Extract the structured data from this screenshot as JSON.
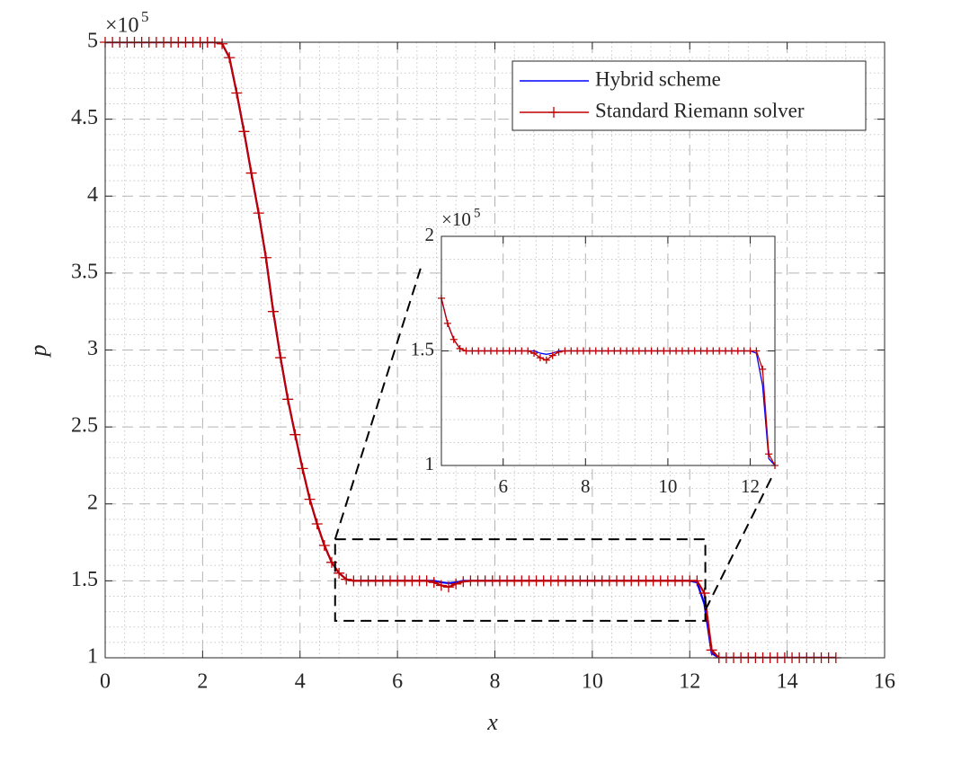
{
  "chart_data": {
    "type": "line",
    "xlabel": "x",
    "ylabel": "p",
    "y_multiplier": {
      "base": "×10",
      "exponent": "5"
    },
    "xlim": [
      0,
      16
    ],
    "ylim": [
      1,
      5
    ],
    "xticks": [
      0,
      2,
      4,
      6,
      8,
      10,
      12,
      14,
      16
    ],
    "yticks": [
      1,
      1.5,
      2,
      2.5,
      3,
      3.5,
      4,
      4.5,
      5
    ],
    "grid": true,
    "minor_grid": true,
    "legend": "upper right",
    "x": [
      0,
      0.15,
      0.3,
      0.45,
      0.6,
      0.75,
      0.9,
      1.05,
      1.2,
      1.35,
      1.5,
      1.65,
      1.8,
      1.95,
      2.1,
      2.25,
      2.4,
      2.55,
      2.7,
      2.85,
      3,
      3.15,
      3.3,
      3.45,
      3.6,
      3.75,
      3.9,
      4.05,
      4.2,
      4.35,
      4.5,
      4.65,
      4.8,
      4.95,
      5.1,
      5.25,
      5.4,
      5.55,
      5.7,
      5.85,
      6,
      6.15,
      6.3,
      6.45,
      6.6,
      6.75,
      6.9,
      7.05,
      7.2,
      7.35,
      7.5,
      7.65,
      7.8,
      7.95,
      8.1,
      8.25,
      8.4,
      8.55,
      8.7,
      8.85,
      9,
      9.15,
      9.3,
      9.45,
      9.6,
      9.75,
      9.9,
      10.05,
      10.2,
      10.35,
      10.5,
      10.65,
      10.8,
      10.95,
      11.1,
      11.25,
      11.4,
      11.55,
      11.7,
      11.85,
      12,
      12.15,
      12.3,
      12.45,
      12.6,
      12.75,
      12.9,
      13.05,
      13.2,
      13.35,
      13.5,
      13.65,
      13.8,
      13.95,
      14.1,
      14.25,
      14.4,
      14.55,
      14.7,
      14.85,
      15
    ],
    "series": [
      {
        "name": "Hybrid scheme",
        "color": "#0000ff",
        "marker": "none",
        "values": [
          5,
          5,
          5,
          5,
          5,
          5,
          5,
          5,
          5,
          5,
          5,
          5,
          5,
          5,
          5,
          5,
          4.99,
          4.9,
          4.67,
          4.42,
          4.15,
          3.89,
          3.6,
          3.25,
          2.95,
          2.68,
          2.45,
          2.23,
          2.03,
          1.87,
          1.73,
          1.62,
          1.55,
          1.51,
          1.5,
          1.5,
          1.5,
          1.5,
          1.5,
          1.5,
          1.5,
          1.5,
          1.5,
          1.5,
          1.5,
          1.5,
          1.49,
          1.485,
          1.49,
          1.5,
          1.5,
          1.5,
          1.5,
          1.5,
          1.5,
          1.5,
          1.5,
          1.5,
          1.5,
          1.5,
          1.5,
          1.5,
          1.5,
          1.5,
          1.5,
          1.5,
          1.5,
          1.5,
          1.5,
          1.5,
          1.5,
          1.5,
          1.5,
          1.5,
          1.5,
          1.5,
          1.5,
          1.5,
          1.5,
          1.5,
          1.5,
          1.49,
          1.35,
          1.03,
          1,
          1,
          1,
          1,
          1,
          1,
          1,
          1,
          1,
          1,
          1,
          1,
          1,
          1,
          1,
          1,
          1
        ]
      },
      {
        "name": "Standard Riemann solver",
        "color": "#c00000",
        "marker": "+",
        "values": [
          5,
          5,
          5,
          5,
          5,
          5,
          5,
          5,
          5,
          5,
          5,
          5,
          5,
          5,
          5,
          5,
          4.99,
          4.9,
          4.67,
          4.42,
          4.15,
          3.89,
          3.6,
          3.25,
          2.95,
          2.68,
          2.45,
          2.23,
          2.03,
          1.87,
          1.73,
          1.62,
          1.55,
          1.51,
          1.5,
          1.5,
          1.5,
          1.5,
          1.5,
          1.5,
          1.5,
          1.5,
          1.5,
          1.5,
          1.5,
          1.49,
          1.47,
          1.46,
          1.48,
          1.495,
          1.5,
          1.5,
          1.5,
          1.5,
          1.5,
          1.5,
          1.5,
          1.5,
          1.5,
          1.5,
          1.5,
          1.5,
          1.5,
          1.5,
          1.5,
          1.5,
          1.5,
          1.5,
          1.5,
          1.5,
          1.5,
          1.5,
          1.5,
          1.5,
          1.5,
          1.5,
          1.5,
          1.5,
          1.5,
          1.5,
          1.5,
          1.5,
          1.42,
          1.05,
          1,
          1,
          1,
          1,
          1,
          1,
          1,
          1,
          1,
          1,
          1,
          1,
          1,
          1,
          1,
          1,
          1
        ]
      }
    ],
    "zoom_box": {
      "xlim": [
        4.72,
        12.32
      ],
      "ylim": [
        1.24,
        1.77
      ]
    },
    "inset": {
      "xlim": [
        4.5,
        12.6
      ],
      "ylim": [
        1,
        2
      ],
      "xticks": [
        6,
        8,
        10,
        12
      ],
      "yticks": [
        1,
        1.5,
        2
      ],
      "y_multiplier": {
        "base": "×10",
        "exponent": "5"
      }
    }
  }
}
